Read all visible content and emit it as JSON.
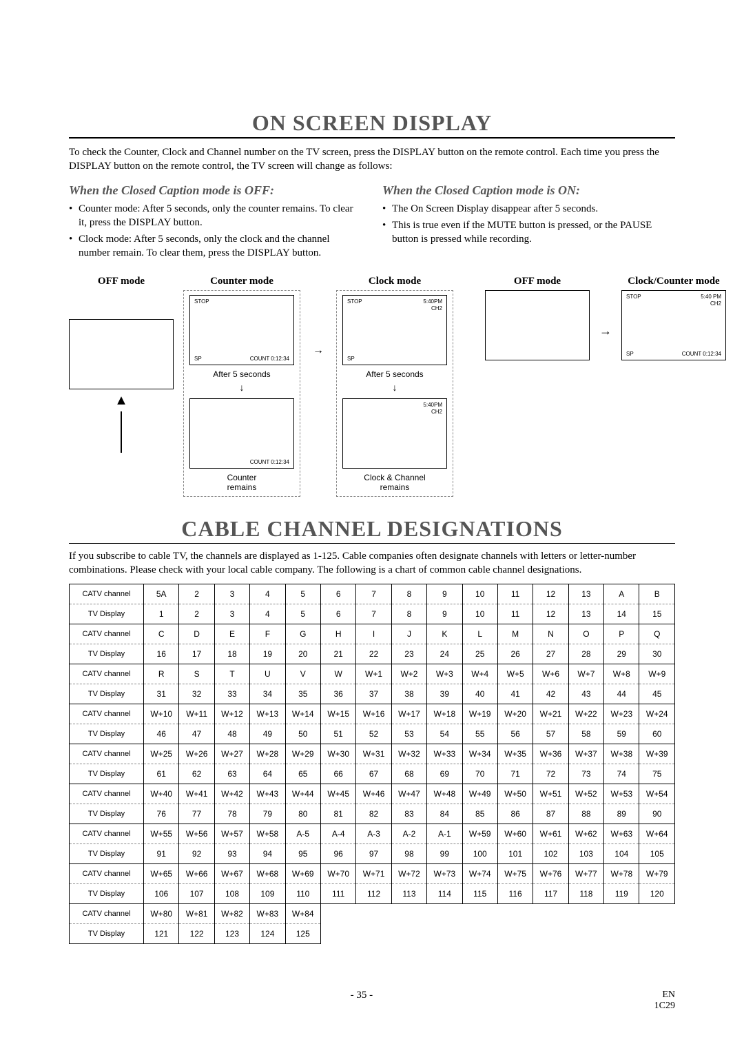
{
  "title1": "ON SCREEN DISPLAY",
  "intro": "To check the Counter, Clock and Channel number on the TV screen, press the DISPLAY button on the remote control. Each time you press the DISPLAY button on the remote control, the TV screen will change as follows:",
  "left": {
    "heading": "When the Closed Caption mode is OFF:",
    "items": [
      "Counter mode: After 5 seconds, only the counter remains. To clear it, press the DISPLAY button.",
      "Clock mode: After 5 seconds, only the clock and the channel number remain. To clear them, press the DISPLAY button."
    ]
  },
  "right": {
    "heading": "When the Closed Caption mode is ON:",
    "items": [
      "The On Screen Display disappear after 5 seconds.",
      "This is true even if the MUTE button is pressed, or the PAUSE button is pressed while recording."
    ]
  },
  "modes": {
    "off": "OFF mode",
    "counter": "Counter mode",
    "clock": "Clock mode",
    "clockCounter": "Clock/Counter mode",
    "after5": "After 5 seconds",
    "counterRemains": "Counter\nremains",
    "clockRemains": "Clock & Channel\nremains",
    "screenText": {
      "stop": "STOP",
      "sp": "SP",
      "count": "COUNT  0:12:34",
      "time": "5:40PM",
      "time2": "5:40 PM",
      "ch": "CH2"
    }
  },
  "title2": "CABLE CHANNEL DESIGNATIONS",
  "intro2": "If you subscribe to cable TV, the channels are displayed as 1-125. Cable companies often designate channels with letters or letter-number combinations. Please check with your local cable company. The following is a chart of common cable channel designations.",
  "rowLabels": {
    "catv": "CATV channel",
    "disp": "TV Display"
  },
  "table": [
    {
      "catv": [
        "5A",
        "2",
        "3",
        "4",
        "5",
        "6",
        "7",
        "8",
        "9",
        "10",
        "11",
        "12",
        "13",
        "A",
        "B"
      ],
      "disp": [
        "1",
        "2",
        "3",
        "4",
        "5",
        "6",
        "7",
        "8",
        "9",
        "10",
        "11",
        "12",
        "13",
        "14",
        "15"
      ]
    },
    {
      "catv": [
        "C",
        "D",
        "E",
        "F",
        "G",
        "H",
        "I",
        "J",
        "K",
        "L",
        "M",
        "N",
        "O",
        "P",
        "Q"
      ],
      "disp": [
        "16",
        "17",
        "18",
        "19",
        "20",
        "21",
        "22",
        "23",
        "24",
        "25",
        "26",
        "27",
        "28",
        "29",
        "30"
      ]
    },
    {
      "catv": [
        "R",
        "S",
        "T",
        "U",
        "V",
        "W",
        "W+1",
        "W+2",
        "W+3",
        "W+4",
        "W+5",
        "W+6",
        "W+7",
        "W+8",
        "W+9"
      ],
      "disp": [
        "31",
        "32",
        "33",
        "34",
        "35",
        "36",
        "37",
        "38",
        "39",
        "40",
        "41",
        "42",
        "43",
        "44",
        "45"
      ]
    },
    {
      "catv": [
        "W+10",
        "W+11",
        "W+12",
        "W+13",
        "W+14",
        "W+15",
        "W+16",
        "W+17",
        "W+18",
        "W+19",
        "W+20",
        "W+21",
        "W+22",
        "W+23",
        "W+24"
      ],
      "disp": [
        "46",
        "47",
        "48",
        "49",
        "50",
        "51",
        "52",
        "53",
        "54",
        "55",
        "56",
        "57",
        "58",
        "59",
        "60"
      ]
    },
    {
      "catv": [
        "W+25",
        "W+26",
        "W+27",
        "W+28",
        "W+29",
        "W+30",
        "W+31",
        "W+32",
        "W+33",
        "W+34",
        "W+35",
        "W+36",
        "W+37",
        "W+38",
        "W+39"
      ],
      "disp": [
        "61",
        "62",
        "63",
        "64",
        "65",
        "66",
        "67",
        "68",
        "69",
        "70",
        "71",
        "72",
        "73",
        "74",
        "75"
      ]
    },
    {
      "catv": [
        "W+40",
        "W+41",
        "W+42",
        "W+43",
        "W+44",
        "W+45",
        "W+46",
        "W+47",
        "W+48",
        "W+49",
        "W+50",
        "W+51",
        "W+52",
        "W+53",
        "W+54"
      ],
      "disp": [
        "76",
        "77",
        "78",
        "79",
        "80",
        "81",
        "82",
        "83",
        "84",
        "85",
        "86",
        "87",
        "88",
        "89",
        "90"
      ]
    },
    {
      "catv": [
        "W+55",
        "W+56",
        "W+57",
        "W+58",
        "A-5",
        "A-4",
        "A-3",
        "A-2",
        "A-1",
        "W+59",
        "W+60",
        "W+61",
        "W+62",
        "W+63",
        "W+64"
      ],
      "disp": [
        "91",
        "92",
        "93",
        "94",
        "95",
        "96",
        "97",
        "98",
        "99",
        "100",
        "101",
        "102",
        "103",
        "104",
        "105"
      ]
    },
    {
      "catv": [
        "W+65",
        "W+66",
        "W+67",
        "W+68",
        "W+69",
        "W+70",
        "W+71",
        "W+72",
        "W+73",
        "W+74",
        "W+75",
        "W+76",
        "W+77",
        "W+78",
        "W+79"
      ],
      "disp": [
        "106",
        "107",
        "108",
        "109",
        "110",
        "111",
        "112",
        "113",
        "114",
        "115",
        "116",
        "117",
        "118",
        "119",
        "120"
      ]
    },
    {
      "catv": [
        "W+80",
        "W+81",
        "W+82",
        "W+83",
        "W+84"
      ],
      "disp": [
        "121",
        "122",
        "123",
        "124",
        "125"
      ]
    }
  ],
  "footer": {
    "page": "- 35 -",
    "lang": "EN",
    "code": "1C29"
  }
}
